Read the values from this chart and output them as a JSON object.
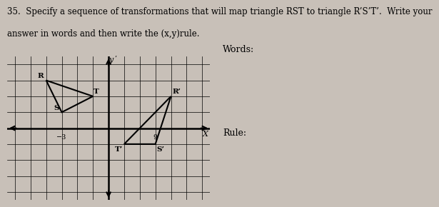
{
  "title_line1": "35.  Specify a sequence of transformations that will map triangle RST to triangle R’S’T’.  Write your",
  "title_line2": "answer in words and then write the (x,y)rule.",
  "words_label": "Words:",
  "rule_label": "Rule:",
  "background_color": "#c8c0b8",
  "triangle_RST": {
    "R": [
      -4,
      3
    ],
    "S": [
      -3,
      1
    ],
    "T": [
      -1,
      2
    ],
    "color": "#000000",
    "linewidth": 1.5
  },
  "triangle_RpSpTp": {
    "Rp": [
      4,
      2
    ],
    "Sp": [
      3,
      -1
    ],
    "Tp": [
      1,
      -1
    ],
    "color": "#000000",
    "linewidth": 1.5
  },
  "xlim": [
    -6.5,
    6.5
  ],
  "ylim": [
    -4.5,
    4.5
  ],
  "font_size_title": 8.5,
  "font_size_labels": 9
}
